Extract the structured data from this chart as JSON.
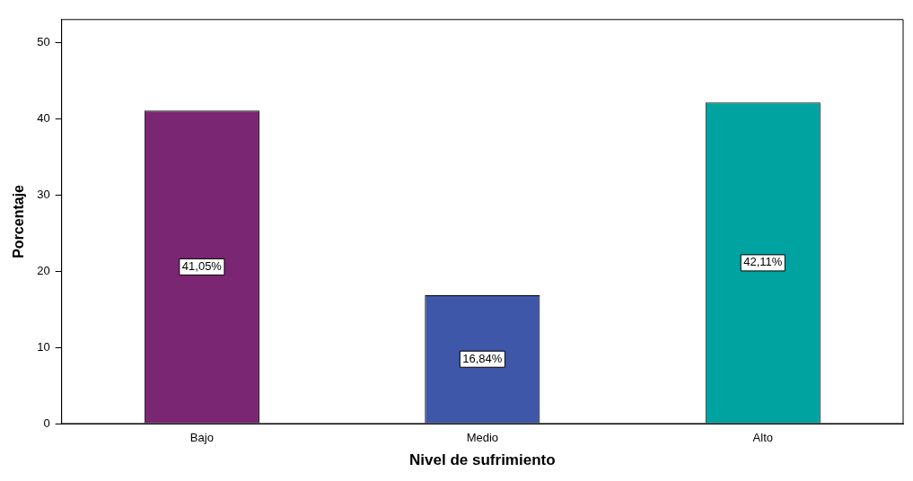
{
  "chart_data": {
    "type": "bar",
    "xlabel": "Nivel de sufrimiento",
    "ylabel": "Porcentaje",
    "categories": [
      "Bajo",
      "Medio",
      "Alto"
    ],
    "values": [
      41.05,
      16.84,
      42.11
    ],
    "value_labels": [
      "41,05%",
      "16,84%",
      "42,11%"
    ],
    "colors": [
      "#7b2672",
      "#3f57a8",
      "#00a3a0"
    ],
    "ylim": [
      0,
      53
    ],
    "yticks": [
      0,
      10,
      20,
      30,
      40,
      50
    ],
    "grid": false,
    "legend": false
  }
}
